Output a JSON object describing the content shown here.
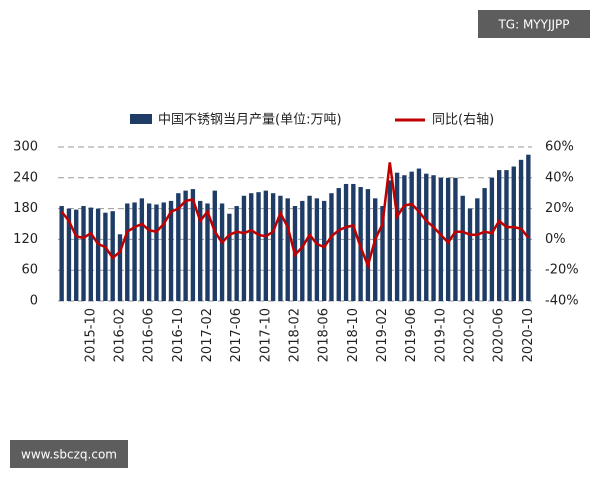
{
  "chart_data": {
    "type": "bar-line",
    "annotations": [
      "TG: MYYJJPP",
      "www.sbczq.com"
    ],
    "categories": [
      null,
      null,
      null,
      null,
      "2015-10",
      null,
      null,
      null,
      "2016-02",
      null,
      null,
      null,
      "2016-06",
      null,
      null,
      null,
      "2016-10",
      null,
      null,
      null,
      "2017-02",
      null,
      null,
      null,
      "2017-06",
      null,
      null,
      null,
      "2017-10",
      null,
      null,
      null,
      "2018-02",
      null,
      null,
      null,
      "2018-06",
      null,
      null,
      null,
      "2018-10",
      null,
      null,
      null,
      "2019-02",
      null,
      null,
      null,
      "2019-06",
      null,
      null,
      null,
      "2019-10",
      null,
      null,
      null,
      "2020-02",
      null,
      null,
      null,
      "2020-06",
      null,
      null,
      null,
      "2020-10"
    ],
    "series": [
      {
        "name": "中国不锈钢当月产量(单位:万吨)",
        "color": "#1f3c66",
        "values": [
          185,
          180,
          178,
          185,
          182,
          180,
          172,
          175,
          130,
          190,
          192,
          200,
          190,
          188,
          192,
          195,
          210,
          215,
          218,
          195,
          190,
          215,
          190,
          170,
          185,
          205,
          210,
          212,
          215,
          210,
          205,
          200,
          185,
          195,
          205,
          200,
          195,
          210,
          220,
          228,
          228,
          222,
          218,
          200,
          185,
          235,
          250,
          245,
          252,
          258,
          248,
          245,
          240,
          240,
          240,
          205,
          180,
          200,
          220,
          240,
          255,
          255,
          262,
          275,
          285
        ]
      },
      {
        "name": "同比(右轴)",
        "color": "#c00000",
        "axis": "y2",
        "values": [
          18,
          12,
          2,
          1,
          4,
          -3,
          -5,
          -12,
          -8,
          5,
          8,
          10,
          6,
          5,
          10,
          18,
          20,
          25,
          26,
          12,
          18,
          5,
          -2,
          3,
          5,
          4,
          6,
          3,
          2,
          5,
          17,
          8,
          -10,
          -5,
          3,
          -3,
          -5,
          2,
          6,
          8,
          9,
          -5,
          -17,
          0,
          10,
          50,
          15,
          22,
          23,
          18,
          12,
          8,
          3,
          -2,
          5,
          5,
          3,
          3,
          5,
          4,
          12,
          8,
          8,
          7,
          1
        ]
      }
    ],
    "ylim": [
      0,
      300
    ],
    "yticks": [
      0,
      60,
      120,
      180,
      240,
      300
    ],
    "y2lim": [
      -40,
      60
    ],
    "y2ticks": [
      {
        "value": -40,
        "label": "-40%"
      },
      {
        "value": -20,
        "label": "-20%"
      },
      {
        "value": 0,
        "label": "0%"
      },
      {
        "value": 20,
        "label": "20%"
      },
      {
        "value": 40,
        "label": "40%"
      },
      {
        "value": 60,
        "label": "60%"
      }
    ],
    "grid": true
  }
}
